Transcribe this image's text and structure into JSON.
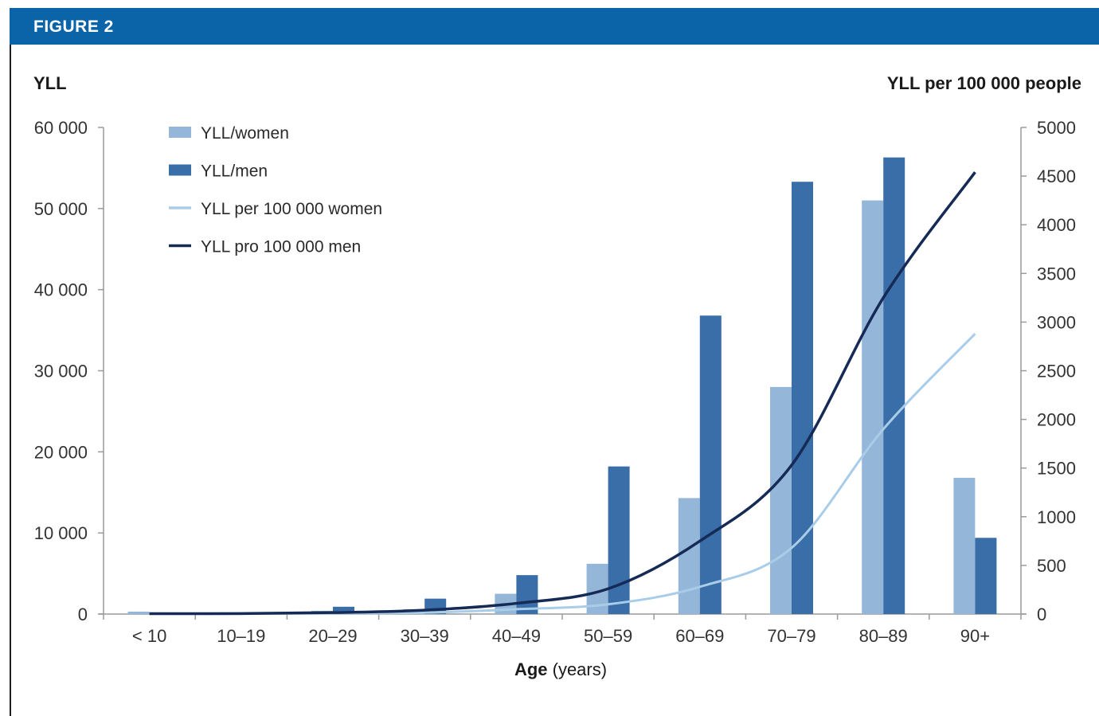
{
  "figure_label": "FIGURE 2",
  "colors": {
    "header": "#0b63a8",
    "women_bar": "#94b6d8",
    "men_bar": "#3a6ea8",
    "women_line": "#a9cde8",
    "men_line": "#152a55"
  },
  "chart_data": {
    "type": "bar",
    "left_axis_label": "YLL",
    "right_axis_label": "YLL per 100 000 people",
    "xlabel_bold": "Age",
    "xlabel_rest": " (years)",
    "categories": [
      "< 10",
      "10–19",
      "20–29",
      "30–39",
      "40–49",
      "50–59",
      "60–69",
      "70–79",
      "80–89",
      "90+"
    ],
    "left_ylim": [
      0,
      60000
    ],
    "left_ticks": [
      0,
      10000,
      20000,
      30000,
      40000,
      50000,
      60000
    ],
    "left_tick_labels": [
      "0",
      "10 000",
      "20 000",
      "30 000",
      "40 000",
      "50 000",
      "60 000"
    ],
    "right_ylim": [
      0,
      5000
    ],
    "right_ticks": [
      0,
      500,
      1000,
      1500,
      2000,
      2500,
      3000,
      3500,
      4000,
      4500,
      5000
    ],
    "right_tick_labels": [
      "0",
      "500",
      "1000",
      "1500",
      "2000",
      "2500",
      "3000",
      "3500",
      "4000",
      "4500",
      "5000"
    ],
    "legend_position": "top-left",
    "series": [
      {
        "name": "YLL/women",
        "kind": "bar",
        "axis": "left",
        "values": [
          300,
          100,
          400,
          600,
          2500,
          6200,
          14300,
          28000,
          51000,
          16800
        ]
      },
      {
        "name": "YLL/men",
        "kind": "bar",
        "axis": "left",
        "values": [
          100,
          200,
          900,
          1900,
          4800,
          18200,
          36800,
          53300,
          56300,
          9400
        ]
      },
      {
        "name": "YLL per 100 000 women",
        "kind": "line",
        "axis": "right",
        "values": [
          5,
          3,
          8,
          15,
          50,
          100,
          280,
          680,
          1900,
          2880
        ]
      },
      {
        "name": "YLL pro 100 000 men",
        "kind": "line",
        "axis": "right",
        "values": [
          4,
          5,
          15,
          40,
          110,
          260,
          750,
          1530,
          3250,
          4540
        ]
      }
    ]
  }
}
